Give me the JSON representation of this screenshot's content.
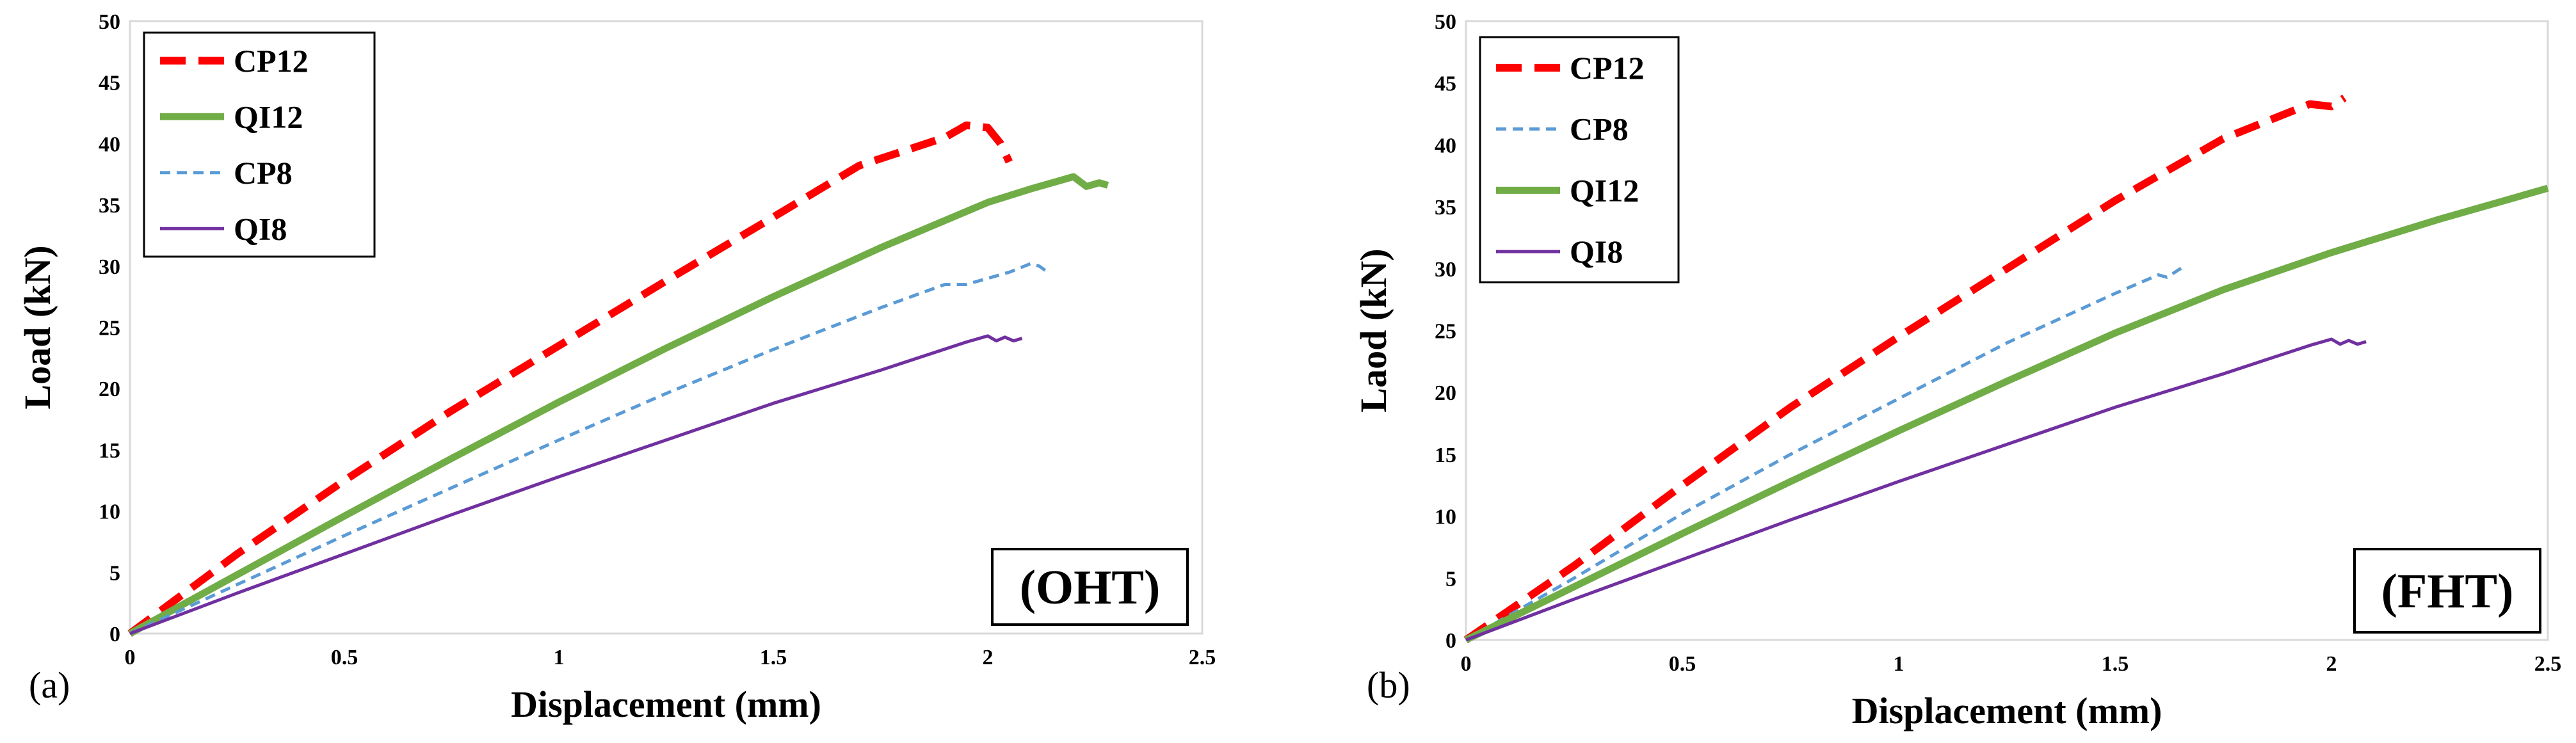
{
  "chart_data": [
    {
      "type": "line",
      "panel_label": "(a)",
      "tag": "(OHT)",
      "xlabel": "Displacement (mm)",
      "ylabel": "Load (kN)",
      "xlim": [
        0,
        2.5
      ],
      "ylim": [
        0,
        50
      ],
      "xticks": [
        "0",
        "0.5",
        "1",
        "1.5",
        "2",
        "2.5"
      ],
      "yticks": [
        "0",
        "5",
        "10",
        "15",
        "20",
        "25",
        "30",
        "35",
        "40",
        "45",
        "50"
      ],
      "legend_position": "top-left",
      "series": [
        {
          "name": "CP12",
          "color": "#ff0000",
          "style": "dashed-thick",
          "x": [
            0,
            0.25,
            0.5,
            0.75,
            1.0,
            1.25,
            1.5,
            1.7,
            1.9,
            1.95,
            2.0,
            2.03,
            2.05
          ],
          "y": [
            0,
            6.5,
            12.5,
            18.2,
            23.5,
            28.8,
            34.0,
            38.2,
            40.5,
            41.5,
            41.3,
            40.0,
            38.5
          ]
        },
        {
          "name": "QI12",
          "color": "#70ad47",
          "style": "solid-thick",
          "x": [
            0,
            0.25,
            0.5,
            0.75,
            1.0,
            1.25,
            1.5,
            1.75,
            2.0,
            2.1,
            2.2,
            2.23,
            2.26,
            2.28
          ],
          "y": [
            0,
            4.8,
            9.6,
            14.3,
            18.9,
            23.3,
            27.5,
            31.5,
            35.2,
            36.3,
            37.3,
            36.5,
            36.8,
            36.6
          ]
        },
        {
          "name": "CP8",
          "color": "#5b9bd5",
          "style": "dashed-thin",
          "x": [
            0,
            0.25,
            0.5,
            0.75,
            1.0,
            1.25,
            1.5,
            1.75,
            1.9,
            1.95,
            2.05,
            2.1,
            2.12,
            2.14
          ],
          "y": [
            0,
            4.0,
            8.0,
            11.9,
            15.8,
            19.6,
            23.2,
            26.6,
            28.5,
            28.5,
            29.5,
            30.2,
            30.0,
            29.5
          ]
        },
        {
          "name": "QI8",
          "color": "#7030a0",
          "style": "solid-thin",
          "x": [
            0,
            0.25,
            0.5,
            0.75,
            1.0,
            1.25,
            1.5,
            1.75,
            1.95,
            2.0,
            2.02,
            2.04,
            2.06,
            2.08
          ],
          "y": [
            0,
            3.3,
            6.5,
            9.7,
            12.8,
            15.8,
            18.8,
            21.5,
            23.8,
            24.3,
            23.9,
            24.2,
            23.9,
            24.1
          ]
        }
      ]
    },
    {
      "type": "line",
      "panel_label": "(b)",
      "tag": "(FHT)",
      "xlabel": "Displacement (mm)",
      "ylabel": "Laod (kN)",
      "xlim": [
        0,
        2.5
      ],
      "ylim": [
        0,
        50
      ],
      "xticks": [
        "0",
        "0.5",
        "1",
        "1.5",
        "2",
        "2.5"
      ],
      "yticks": [
        "0",
        "5",
        "10",
        "15",
        "20",
        "25",
        "30",
        "35",
        "40",
        "45",
        "50"
      ],
      "legend_position": "top-left",
      "series": [
        {
          "name": "CP12",
          "color": "#ff0000",
          "style": "dashed-thick",
          "x": [
            0,
            0.25,
            0.5,
            0.75,
            1.0,
            1.25,
            1.5,
            1.75,
            1.95,
            2.0,
            2.03
          ],
          "y": [
            0,
            6.0,
            12.5,
            18.8,
            24.5,
            30.0,
            35.5,
            40.5,
            43.3,
            43.1,
            43.8
          ]
        },
        {
          "name": "CP8",
          "color": "#5b9bd5",
          "style": "dashed-thin",
          "x": [
            0,
            0.25,
            0.5,
            0.75,
            1.0,
            1.25,
            1.5,
            1.6,
            1.62,
            1.66
          ],
          "y": [
            0,
            5.0,
            10.2,
            15.0,
            19.5,
            24.0,
            28.0,
            29.5,
            29.3,
            30.2
          ]
        },
        {
          "name": "QI12",
          "color": "#70ad47",
          "style": "solid-thick",
          "x": [
            0,
            0.25,
            0.5,
            0.75,
            1.0,
            1.25,
            1.5,
            1.75,
            2.0,
            2.25,
            2.5
          ],
          "y": [
            0,
            4.3,
            8.6,
            12.8,
            16.9,
            20.9,
            24.8,
            28.3,
            31.3,
            34.0,
            36.5
          ]
        },
        {
          "name": "QI8",
          "color": "#7030a0",
          "style": "solid-thin",
          "x": [
            0,
            0.25,
            0.5,
            0.75,
            1.0,
            1.25,
            1.5,
            1.75,
            1.95,
            2.0,
            2.02,
            2.04,
            2.06,
            2.08
          ],
          "y": [
            0,
            3.3,
            6.5,
            9.7,
            12.8,
            15.8,
            18.8,
            21.5,
            23.8,
            24.3,
            23.9,
            24.2,
            23.9,
            24.1
          ]
        }
      ]
    }
  ]
}
